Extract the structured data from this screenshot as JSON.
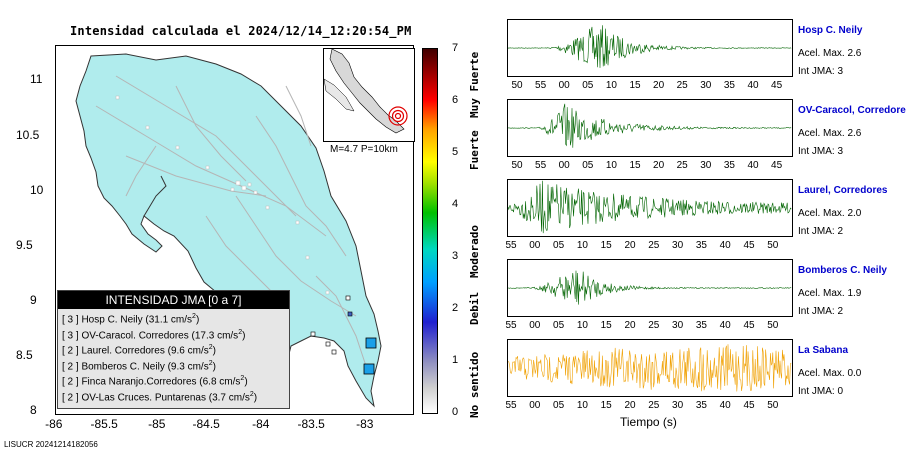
{
  "map": {
    "title": "Intensidad calculada el 2024/12/14_12:20:54_PM",
    "lat_ticks": [
      "11",
      "10.5",
      "10",
      "9.5",
      "9",
      "8.5",
      "8"
    ],
    "lon_ticks": [
      "-86",
      "-85.5",
      "-85",
      "-84.5",
      "-84",
      "-83.5",
      "-83"
    ],
    "event_info": "M=4.7 P=10km",
    "land_color": "#b0eced",
    "legend": {
      "header": "INTENSIDAD JMA [0 a 7]",
      "rows": [
        {
          "level": "[ 3 ]",
          "name": "Hosp C. Neily",
          "accel": "(31.1 cm/s",
          "exp": "2",
          "close": ")"
        },
        {
          "level": "[ 3 ]",
          "name": "OV-Caracol. Corredores",
          "accel": "(17.3 cm/s",
          "exp": "2",
          "close": ")"
        },
        {
          "level": "[ 2 ]",
          "name": "Laurel. Corredores",
          "accel": "(9.6 cm/s",
          "exp": "2",
          "close": ")"
        },
        {
          "level": "[ 2 ]",
          "name": "Bomberos C. Neily",
          "accel": "(9.3 cm/s",
          "exp": "2",
          "close": ")"
        },
        {
          "level": "[ 2 ]",
          "name": "Finca Naranjo.Corredores",
          "accel": "(6.8 cm/s",
          "exp": "2",
          "close": ")"
        },
        {
          "level": "[ 2 ]",
          "name": "OV-Las Cruces. Puntarenas",
          "accel": "(3.7 cm/s",
          "exp": "2",
          "close": ")"
        }
      ]
    },
    "footer_id": "LISUCR 20241214182056"
  },
  "colorbar": {
    "ticks": [
      "7",
      "6",
      "5",
      "4",
      "3",
      "2",
      "1",
      "0"
    ],
    "categories": [
      "Muy Fuerte",
      "Fuerte",
      "Moderado",
      "Debil",
      "No sentido"
    ]
  },
  "stations": [
    {
      "name": "Hosp C. Neily",
      "accel": "Acel. Max. 2.6",
      "jma": "Int JMA: 3",
      "color": "#006400",
      "ticks": [
        "50",
        "55",
        "00",
        "05",
        "10",
        "15",
        "20",
        "25",
        "30",
        "35",
        "40",
        "45"
      ]
    },
    {
      "name": "OV-Caracol, Corredore",
      "accel": "Acel. Max. 2.6",
      "jma": "Int JMA: 3",
      "color": "#006400",
      "ticks": [
        "50",
        "55",
        "00",
        "05",
        "10",
        "15",
        "20",
        "25",
        "30",
        "35",
        "40",
        "45"
      ]
    },
    {
      "name": "Laurel, Corredores",
      "accel": "Acel. Max. 2.0",
      "jma": "Int JMA: 2",
      "color": "#006400",
      "ticks": [
        "55",
        "00",
        "05",
        "10",
        "15",
        "20",
        "25",
        "30",
        "35",
        "40",
        "45",
        "50"
      ]
    },
    {
      "name": "Bomberos C. Neily",
      "accel": "Acel. Max. 1.9",
      "jma": "Int JMA: 2",
      "color": "#006400",
      "ticks": [
        "55",
        "00",
        "05",
        "10",
        "15",
        "20",
        "25",
        "30",
        "35",
        "40",
        "45",
        "50"
      ]
    },
    {
      "name": "La Sabana",
      "accel": "Acel. Max. 0.0",
      "jma": "Int JMA: 0",
      "color": "#f0a000",
      "ticks": [
        "55",
        "00",
        "05",
        "10",
        "15",
        "20",
        "25",
        "30",
        "35",
        "40",
        "45",
        "50"
      ]
    }
  ],
  "time_axis_label": "Tiempo (s)"
}
